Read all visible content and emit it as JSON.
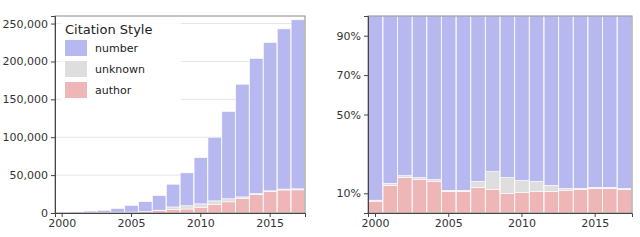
{
  "chart_data": [
    {
      "type": "bar",
      "stacked": true,
      "grid": true,
      "legend": "top-left",
      "legend_title": "Citation Style",
      "categories": [
        "2000",
        null,
        null,
        null,
        null,
        "2005",
        null,
        null,
        null,
        null,
        "2010",
        null,
        null,
        null,
        null,
        "2015",
        null,
        null
      ],
      "series": [
        {
          "name": "number",
          "color": "#b8b8f0",
          "values": [
            467,
            1275,
            2025,
            2870,
            4980,
            8850,
            13275,
            19320,
            30020,
            43460,
            60955,
            84000,
            115240,
            148750,
            178500,
            195750,
            211410,
            223125
          ]
        },
        {
          "name": "unknown",
          "color": "#dedede",
          "values": [
            3,
            15,
            25,
            35,
            60,
            50,
            75,
            690,
            3420,
            4240,
            4380,
            5000,
            4020,
            1700,
            1020,
            1125,
            1215,
            1275
          ]
        },
        {
          "name": "author",
          "color": "#eeb6b6",
          "values": [
            30,
            210,
            450,
            595,
            960,
            1100,
            1650,
            2990,
            4560,
            5300,
            7665,
            11000,
            14740,
            19550,
            24480,
            28125,
            30375,
            30600
          ]
        }
      ],
      "ylim": [
        0,
        260000
      ],
      "yticks": [
        0,
        {
          "value": 50000,
          "label": "50,000"
        },
        {
          "value": 100000,
          "label": "100,000"
        },
        {
          "value": 150000,
          "label": "150,000"
        },
        {
          "value": 200000,
          "label": "200,000"
        },
        {
          "value": 250000,
          "label": "250,000"
        }
      ]
    },
    {
      "type": "bar",
      "stacked": true,
      "grid": false,
      "legend": "none",
      "categories": [
        "2000",
        null,
        null,
        null,
        null,
        "2005",
        null,
        null,
        null,
        null,
        "2010",
        null,
        null,
        null,
        null,
        "2015",
        null,
        null
      ],
      "series": [
        {
          "name": "number",
          "color": "#b8b8f0",
          "values": [
            93.5,
            85,
            81,
            82,
            83,
            88.5,
            88.5,
            84,
            79,
            82,
            83.5,
            84,
            86,
            87.5,
            87.5,
            87,
            87,
            87.5
          ]
        },
        {
          "name": "unknown",
          "color": "#dedede",
          "values": [
            0.5,
            1,
            1,
            1,
            1,
            0.5,
            0.5,
            3,
            9,
            8,
            6,
            5,
            3,
            1,
            0.5,
            0.5,
            0.5,
            0.5
          ]
        },
        {
          "name": "author",
          "color": "#eeb6b6",
          "values": [
            6,
            14,
            18,
            17,
            16,
            11,
            11,
            13,
            12,
            10,
            10.5,
            11,
            11,
            11.5,
            12,
            12.5,
            12.5,
            12
          ]
        }
      ],
      "ylim": [
        0,
        100
      ],
      "yticks": [
        {
          "value": 10,
          "label": "10%"
        },
        {
          "value": 50,
          "label": "50%"
        },
        {
          "value": 70,
          "label": "70%"
        },
        {
          "value": 90,
          "label": "90%"
        }
      ]
    }
  ]
}
